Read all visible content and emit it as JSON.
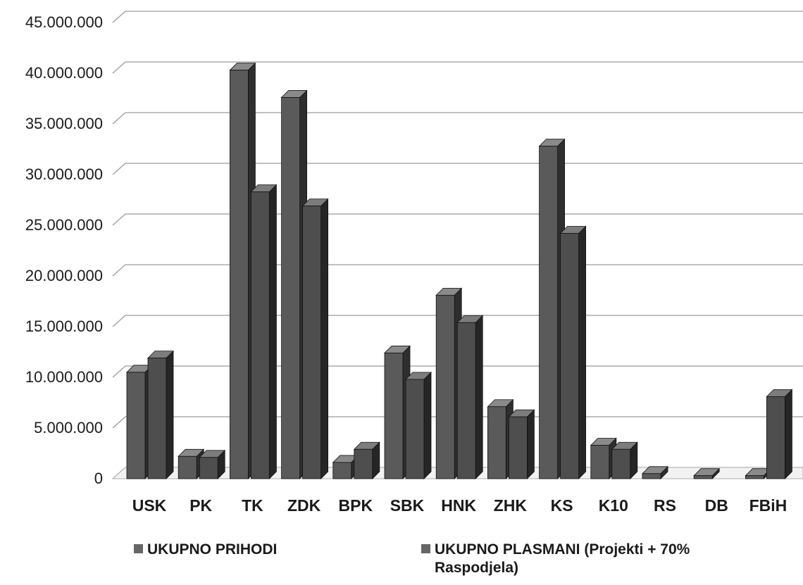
{
  "chart_data": {
    "type": "bar",
    "categories": [
      "USK",
      "PK",
      "TK",
      "ZDK",
      "BPK",
      "SBK",
      "HNK",
      "ZHK",
      "KS",
      "K10",
      "RS",
      "DB",
      "FBiH"
    ],
    "series": [
      {
        "name": "UKUPNO PRIHODI",
        "values": [
          10500000,
          2200000,
          40300000,
          37600000,
          1600000,
          12400000,
          18100000,
          7100000,
          32800000,
          3300000,
          500000,
          300000,
          300000
        ]
      },
      {
        "name": "UKUPNO PLASMANI (Projekti + 70% Raspodjela)",
        "values": [
          11900000,
          2100000,
          28300000,
          26900000,
          2900000,
          9800000,
          15400000,
          6100000,
          24200000,
          2900000,
          0,
          0,
          8100000
        ]
      }
    ],
    "yticks": [
      "0",
      "5.000.000",
      "10.000.000",
      "15.000.000",
      "20.000.000",
      "25.000.000",
      "30.000.000",
      "35.000.000",
      "40.000.000",
      "45.000.000"
    ],
    "ylim": [
      0,
      45000000
    ],
    "grid": true,
    "legend_position": "bottom",
    "colors": {
      "series1": "#555555",
      "series2": "#4a4a4a",
      "gridline": "#9a9a9a",
      "text": "#1a1a1a"
    }
  }
}
